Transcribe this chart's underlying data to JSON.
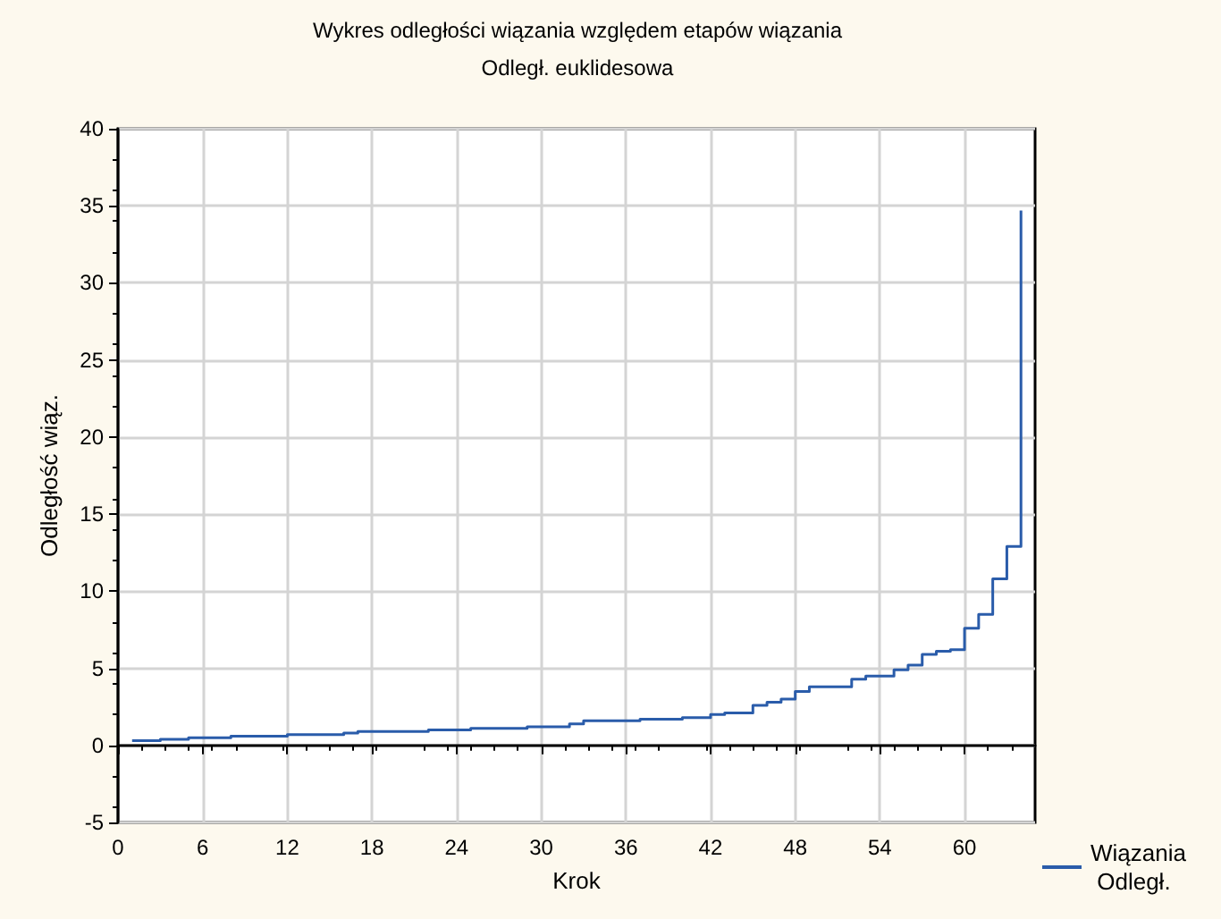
{
  "chart_data": {
    "type": "step",
    "title": "Wykres odległości wiązania względem etapów wiązania",
    "subtitle": "Odległ. euklidesowa",
    "xlabel": "Krok",
    "ylabel": "Odległość wiąz.",
    "x": [
      1,
      2,
      3,
      4,
      5,
      6,
      7,
      8,
      9,
      10,
      11,
      12,
      13,
      14,
      15,
      16,
      17,
      18,
      19,
      20,
      21,
      22,
      23,
      24,
      25,
      26,
      27,
      28,
      29,
      30,
      31,
      32,
      33,
      34,
      35,
      36,
      37,
      38,
      39,
      40,
      41,
      42,
      43,
      44,
      45,
      46,
      47,
      48,
      49,
      50,
      51,
      52,
      53,
      54,
      55,
      56,
      57,
      58,
      59,
      60,
      61,
      62,
      63,
      64
    ],
    "series": [
      {
        "name": "Wiązania Odległ.",
        "color": "#2a5caa",
        "values": [
          0.3,
          0.3,
          0.4,
          0.4,
          0.5,
          0.5,
          0.5,
          0.6,
          0.6,
          0.6,
          0.6,
          0.7,
          0.7,
          0.7,
          0.7,
          0.8,
          0.9,
          0.9,
          0.9,
          0.9,
          0.9,
          1.0,
          1.0,
          1.0,
          1.1,
          1.1,
          1.1,
          1.1,
          1.2,
          1.2,
          1.2,
          1.4,
          1.6,
          1.6,
          1.6,
          1.6,
          1.7,
          1.7,
          1.7,
          1.8,
          1.8,
          2.0,
          2.1,
          2.1,
          2.6,
          2.8,
          3.0,
          3.5,
          3.8,
          3.8,
          3.8,
          4.3,
          4.5,
          4.5,
          4.9,
          5.2,
          5.9,
          6.1,
          6.2,
          7.6,
          8.5,
          10.8,
          12.9,
          34.7
        ]
      }
    ],
    "xlim": [
      0,
      65
    ],
    "xticks": [
      0,
      6,
      12,
      18,
      24,
      30,
      36,
      42,
      48,
      54,
      60
    ],
    "ylim": [
      -5,
      40
    ],
    "yticks": [
      -5,
      0,
      5,
      10,
      15,
      20,
      25,
      30,
      35,
      40
    ],
    "grid": true,
    "legend": "bottom right",
    "marker": "none",
    "line_style": "solid"
  }
}
